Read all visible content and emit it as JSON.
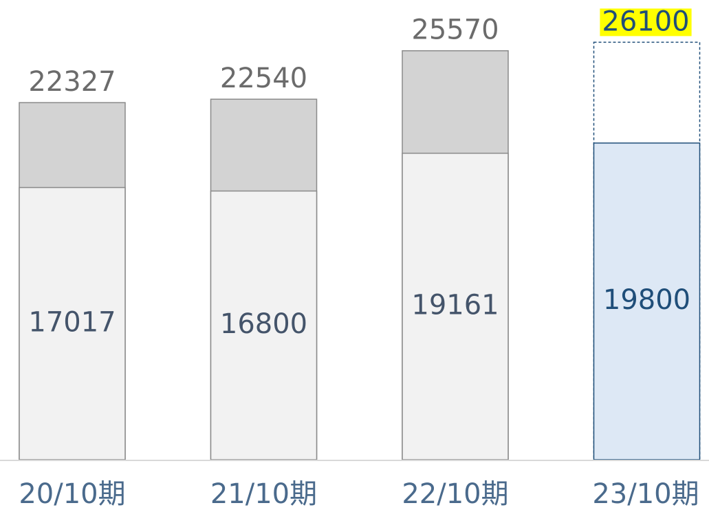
{
  "chart_data": {
    "type": "bar",
    "categories": [
      "20/10期",
      "21/10期",
      "22/10期",
      "23/10期"
    ],
    "series": [
      {
        "values": [
          22327,
          22540,
          25570,
          26100
        ],
        "colors": [
          "#d3d3d3",
          "#d3d3d3",
          "#d3d3d3",
          "#ffffff"
        ],
        "label_colors": [
          "#6b6b6b",
          "#6b6b6b",
          "#6b6b6b",
          "#1f4e79"
        ],
        "highlight": [
          null,
          null,
          null,
          "#ffff00"
        ]
      },
      {
        "values": [
          17017,
          16800,
          19161,
          19800
        ],
        "colors": [
          "#f2f2f2",
          "#f2f2f2",
          "#f2f2f2",
          "#dde8f5"
        ],
        "label_colors": [
          "#44546a",
          "#44546a",
          "#44546a",
          "#1f4e79"
        ]
      }
    ],
    "ylim": [
      0,
      28700
    ]
  }
}
